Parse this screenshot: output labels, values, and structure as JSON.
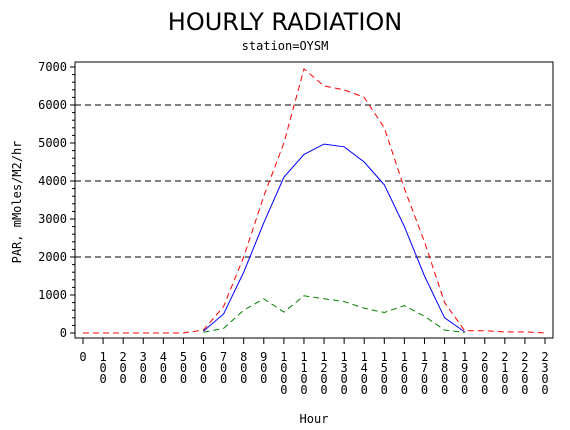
{
  "chart_data": {
    "type": "line",
    "title": "HOURLY RADIATION",
    "subtitle": "station=OYSM",
    "xlabel": "Hour",
    "ylabel": "PAR, mMoles/M2/hr",
    "xlim": [
      0,
      2300
    ],
    "ylim": [
      0,
      7000
    ],
    "yticks": [
      0,
      1000,
      2000,
      3000,
      4000,
      5000,
      6000,
      7000
    ],
    "xticks": [
      "0",
      "100",
      "200",
      "300",
      "400",
      "500",
      "600",
      "700",
      "800",
      "900",
      "1000",
      "1100",
      "1200",
      "1300",
      "1400",
      "1500",
      "1600",
      "1700",
      "1800",
      "1900",
      "2000",
      "2100",
      "2200",
      "2300"
    ],
    "grid": "horizontal dashed at 2000, 4000, 6000",
    "series": [
      {
        "style": "dashed",
        "color": "#ff0000",
        "x": [
          0,
          100,
          200,
          300,
          400,
          500,
          600,
          700,
          800,
          900,
          1000,
          1100,
          1200,
          1300,
          1400,
          1500,
          1600,
          1700,
          1800,
          1900,
          2000,
          2100,
          2200,
          2300
        ],
        "y": [
          0,
          0,
          0,
          0,
          0,
          0,
          80,
          700,
          2000,
          3600,
          5000,
          6950,
          6500,
          6400,
          6200,
          5400,
          3800,
          2400,
          800,
          60,
          60,
          30,
          30,
          0
        ]
      },
      {
        "style": "solid",
        "color": "#0000ff",
        "x": [
          600,
          700,
          800,
          900,
          1000,
          1100,
          1200,
          1300,
          1400,
          1500,
          1600,
          1700,
          1800,
          1900
        ],
        "y": [
          50,
          500,
          1600,
          2900,
          4100,
          4700,
          4970,
          4900,
          4500,
          3900,
          2800,
          1500,
          400,
          30
        ]
      },
      {
        "style": "dashed",
        "color": "#008000",
        "x": [
          600,
          700,
          800,
          900,
          1000,
          1100,
          1200,
          1300,
          1400,
          1500,
          1600,
          1700,
          1800,
          1900
        ],
        "y": [
          20,
          120,
          600,
          900,
          550,
          980,
          900,
          830,
          650,
          540,
          720,
          440,
          80,
          10
        ]
      }
    ]
  }
}
